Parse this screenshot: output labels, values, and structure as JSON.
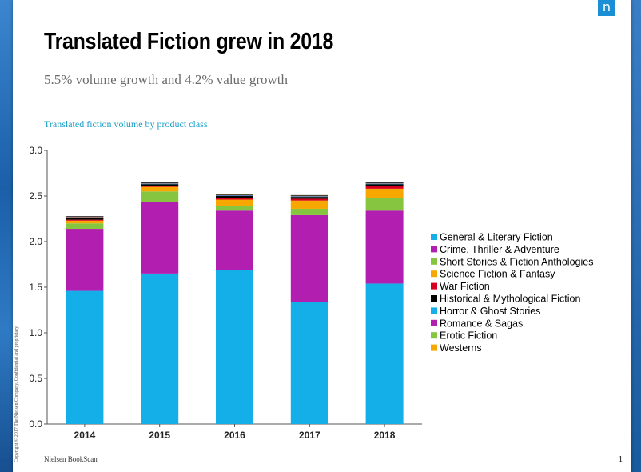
{
  "logo_text": "n",
  "title": "Translated Fiction grew in 2018",
  "subtitle": "5.5% volume growth and 4.2% value growth",
  "chart_heading": "Translated fiction volume by product class",
  "footer": {
    "source": "Nielsen BookScan",
    "page_number": "1",
    "copyright": "Copyright © 2017 The Nielsen Company. Confidential and proprietary."
  },
  "chart_data": {
    "type": "bar",
    "stacked": true,
    "title": "Translated fiction volume by product class",
    "xlabel": "",
    "ylabel": "",
    "ylim": [
      0,
      3.0
    ],
    "yticks": [
      "0.0",
      "0.5",
      "1.0",
      "1.5",
      "2.0",
      "2.5",
      "3.0"
    ],
    "grid": false,
    "legend_position": "right",
    "categories": [
      "2014",
      "2015",
      "2016",
      "2017",
      "2018"
    ],
    "series": [
      {
        "name": "General & Literary Fiction",
        "color": "#14aee8",
        "values": [
          1.46,
          1.65,
          1.69,
          1.34,
          1.54
        ]
      },
      {
        "name": "Crime, Thriller & Adventure",
        "color": "#b21fb0",
        "values": [
          0.68,
          0.78,
          0.65,
          0.95,
          0.8
        ]
      },
      {
        "name": "Short Stories & Fiction Anthologies",
        "color": "#86c540",
        "values": [
          0.06,
          0.12,
          0.05,
          0.07,
          0.14
        ]
      },
      {
        "name": "Science Fiction & Fantasy",
        "color": "#f7a800",
        "values": [
          0.03,
          0.05,
          0.07,
          0.09,
          0.1
        ]
      },
      {
        "name": "War Fiction",
        "color": "#d7001c",
        "values": [
          0.01,
          0.01,
          0.02,
          0.02,
          0.03
        ]
      },
      {
        "name": "Historical & Mythological Fiction",
        "color": "#000000",
        "values": [
          0.02,
          0.02,
          0.02,
          0.02,
          0.02
        ]
      },
      {
        "name": "Horror & Ghost Stories",
        "color": "#14aee8",
        "values": [
          0.005,
          0.005,
          0.005,
          0.005,
          0.005
        ]
      },
      {
        "name": "Romance & Sagas",
        "color": "#b21fb0",
        "values": [
          0.005,
          0.005,
          0.005,
          0.005,
          0.005
        ]
      },
      {
        "name": "Erotic Fiction",
        "color": "#86c540",
        "values": [
          0.003,
          0.003,
          0.003,
          0.003,
          0.003
        ]
      },
      {
        "name": "Westerns",
        "color": "#f7a800",
        "values": [
          0.002,
          0.002,
          0.002,
          0.002,
          0.002
        ]
      }
    ]
  }
}
